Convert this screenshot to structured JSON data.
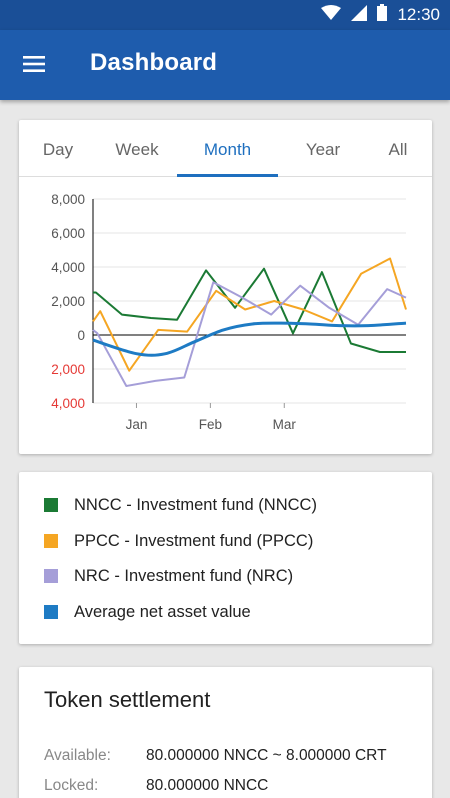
{
  "status_bar": {
    "time": "12:30",
    "icons": [
      "wifi-icon",
      "signal-icon",
      "battery-icon"
    ]
  },
  "app_bar": {
    "title": "Dashboard",
    "menu_icon": "hamburger-menu-icon"
  },
  "tabs": [
    {
      "label": "Day",
      "active": false
    },
    {
      "label": "Week",
      "active": false
    },
    {
      "label": "Month",
      "active": true
    },
    {
      "label": "Year",
      "active": false
    },
    {
      "label": "All",
      "active": false
    }
  ],
  "chart_data": {
    "type": "line",
    "title": "",
    "xlabel": "",
    "ylabel": "",
    "x_tick_labels": [
      "Jan",
      "Feb",
      "Mar"
    ],
    "y_ticks": [
      {
        "label": "8,000",
        "value": 8000
      },
      {
        "label": "6,000",
        "value": 6000
      },
      {
        "label": "4,000",
        "value": 4000
      },
      {
        "label": "2,000",
        "value": 2000
      },
      {
        "label": "0",
        "value": 0
      },
      {
        "label": "2,000",
        "value": -2000,
        "negative": true
      },
      {
        "label": "4,000",
        "value": -4000,
        "negative": true
      }
    ],
    "ylim": [
      -4000,
      8000
    ],
    "grid": "horizontal",
    "negative_label_color": "#e53935",
    "series": [
      {
        "name": "NNCC - Investment fund (NNCC)",
        "color": "#1b7a34",
        "points": [
          [
            0,
            2500
          ],
          [
            0.2,
            2500
          ],
          [
            2,
            1200
          ],
          [
            4,
            1000
          ],
          [
            5.8,
            900
          ],
          [
            7.8,
            3800
          ],
          [
            9.8,
            1600
          ],
          [
            11.8,
            3900
          ],
          [
            13.8,
            100
          ],
          [
            15.8,
            3700
          ],
          [
            17.8,
            -500
          ],
          [
            19.8,
            -1000
          ],
          [
            21.6,
            -1000
          ]
        ]
      },
      {
        "name": "PPCC - Investment fund (PPCC)",
        "color": "#f5a623",
        "points": [
          [
            0,
            800
          ],
          [
            0.5,
            1400
          ],
          [
            2.5,
            -2100
          ],
          [
            4.5,
            300
          ],
          [
            6.5,
            200
          ],
          [
            8.5,
            2600
          ],
          [
            10.5,
            1500
          ],
          [
            12.5,
            2000
          ],
          [
            14.5,
            1500
          ],
          [
            16.5,
            800
          ],
          [
            18.5,
            3600
          ],
          [
            20.5,
            4500
          ],
          [
            21.6,
            1500
          ]
        ]
      },
      {
        "name": "NRC - Investment fund (NRC)",
        "color": "#a59ed8",
        "points": [
          [
            0,
            300
          ],
          [
            0.3,
            100
          ],
          [
            2.3,
            -3000
          ],
          [
            4.3,
            -2700
          ],
          [
            6.3,
            -2500
          ],
          [
            8.3,
            3100
          ],
          [
            10.3,
            2200
          ],
          [
            12.3,
            1200
          ],
          [
            14.3,
            2900
          ],
          [
            16.3,
            1600
          ],
          [
            18.3,
            600
          ],
          [
            20.3,
            2700
          ],
          [
            21.6,
            2200
          ]
        ]
      },
      {
        "name": "Average net asset value",
        "color": "#1e7bc4",
        "smooth": true,
        "points": [
          [
            0,
            -300
          ],
          [
            3,
            -1100
          ],
          [
            5,
            -1100
          ],
          [
            7,
            -400
          ],
          [
            9,
            300
          ],
          [
            11,
            650
          ],
          [
            13,
            700
          ],
          [
            15,
            650
          ],
          [
            17,
            550
          ],
          [
            19,
            550
          ],
          [
            21.6,
            700
          ]
        ]
      }
    ],
    "x_domain": [
      0,
      21.6
    ],
    "x_tick_positions": [
      3,
      8.1,
      13.2
    ]
  },
  "legend": [
    {
      "label": "NNCC - Investment fund (NNCC)",
      "color": "#1b7a34"
    },
    {
      "label": "PPCC - Investment fund (PPCC)",
      "color": "#f5a623"
    },
    {
      "label": "NRC - Investment fund (NRC)",
      "color": "#a59ed8"
    },
    {
      "label": "Average net asset value",
      "color": "#1e7bc4"
    }
  ],
  "token_settlement": {
    "title": "Token settlement",
    "available_label": "Available:",
    "available_value": "80.000000 NNCC ~ 8.000000 CRT",
    "locked_label": "Locked:",
    "locked_value": "80.000000 NNCC"
  }
}
